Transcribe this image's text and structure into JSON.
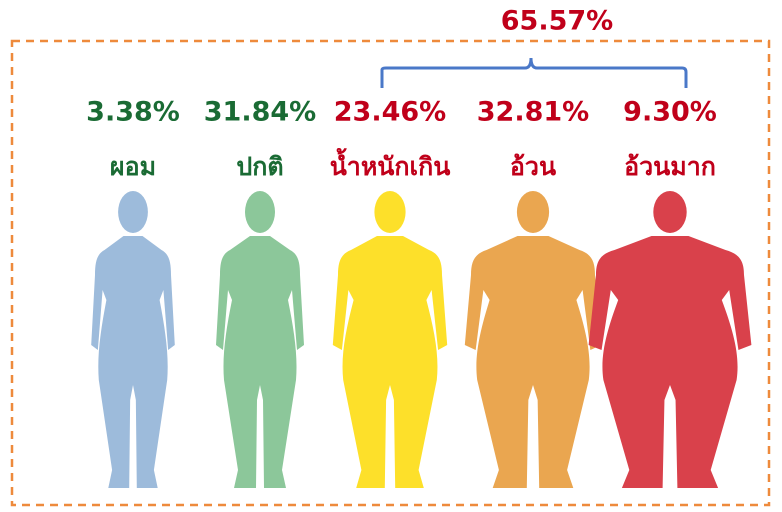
{
  "total": "65.57%",
  "items": [
    {
      "percent": "3.38%",
      "label": "ผอม"
    },
    {
      "percent": "31.84%",
      "label": "ปกติ"
    },
    {
      "percent": "23.46%",
      "label": "น้ำหนักเกิน"
    },
    {
      "percent": "32.81%",
      "label": "อ้วน"
    },
    {
      "percent": "9.30%",
      "label": "อ้วนมาก"
    }
  ]
}
